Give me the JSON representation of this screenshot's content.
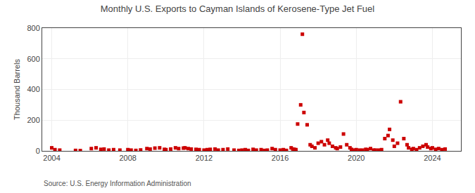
{
  "chart_data": {
    "type": "scatter",
    "title": "Monthly U.S. Exports to Cayman Islands of Kerosene-Type Jet Fuel",
    "ylabel": "Thousand Barrels",
    "annotation": "Source: U.S. Energy Information Administration",
    "color": "#cc0000",
    "marker": "square",
    "grid": true,
    "ylim": [
      0,
      800
    ],
    "yticks": [
      0,
      200,
      400,
      600,
      800
    ],
    "xlim": [
      2003.5,
      2025.5
    ],
    "xticks": [
      2004,
      2008,
      2012,
      2016,
      2020,
      2024
    ],
    "x": [
      2004.0,
      2004.17,
      2004.42,
      2005.25,
      2005.5,
      2006.08,
      2006.33,
      2006.58,
      2006.75,
      2007.0,
      2007.25,
      2007.58,
      2008.0,
      2008.17,
      2008.42,
      2008.67,
      2009.0,
      2009.17,
      2009.42,
      2009.67,
      2009.92,
      2010.0,
      2010.25,
      2010.5,
      2010.67,
      2010.92,
      2011.0,
      2011.17,
      2011.33,
      2011.58,
      2011.75,
      2012.0,
      2012.17,
      2012.33,
      2012.58,
      2012.75,
      2013.0,
      2013.25,
      2013.58,
      2013.83,
      2014.0,
      2014.17,
      2014.33,
      2014.58,
      2014.75,
      2015.0,
      2015.17,
      2015.33,
      2015.58,
      2015.75,
      2016.0,
      2016.17,
      2016.33,
      2016.58,
      2016.67,
      2016.75,
      2016.83,
      2016.92,
      2017.08,
      2017.17,
      2017.25,
      2017.42,
      2017.58,
      2017.67,
      2017.83,
      2018.0,
      2018.17,
      2018.33,
      2018.5,
      2018.58,
      2018.75,
      2018.92,
      2019.0,
      2019.17,
      2019.33,
      2019.5,
      2019.67,
      2019.75,
      2019.92,
      2020.0,
      2020.17,
      2020.33,
      2020.5,
      2020.58,
      2020.75,
      2020.92,
      2021.0,
      2021.17,
      2021.33,
      2021.5,
      2021.67,
      2021.75,
      2021.92,
      2022.0,
      2022.17,
      2022.33,
      2022.5,
      2022.67,
      2022.75,
      2022.92,
      2023.0,
      2023.17,
      2023.33,
      2023.5,
      2023.67,
      2023.75,
      2023.92,
      2024.0,
      2024.17,
      2024.33,
      2024.5,
      2024.67
    ],
    "values": [
      20,
      8,
      5,
      3,
      2,
      15,
      20,
      10,
      12,
      5,
      8,
      5,
      8,
      5,
      3,
      6,
      15,
      12,
      18,
      20,
      10,
      8,
      12,
      20,
      15,
      18,
      20,
      15,
      12,
      10,
      8,
      5,
      8,
      10,
      12,
      5,
      8,
      12,
      5,
      3,
      5,
      8,
      3,
      10,
      5,
      8,
      3,
      5,
      15,
      8,
      5,
      8,
      3,
      20,
      12,
      10,
      8,
      175,
      300,
      760,
      250,
      170,
      40,
      30,
      20,
      50,
      60,
      40,
      70,
      50,
      30,
      20,
      15,
      25,
      110,
      40,
      20,
      10,
      5,
      8,
      5,
      5,
      10,
      8,
      15,
      5,
      5,
      5,
      8,
      80,
      100,
      140,
      70,
      30,
      50,
      320,
      80,
      40,
      20,
      10,
      15,
      8,
      20,
      30,
      40,
      25,
      15,
      20,
      10,
      15,
      8,
      12
    ]
  }
}
